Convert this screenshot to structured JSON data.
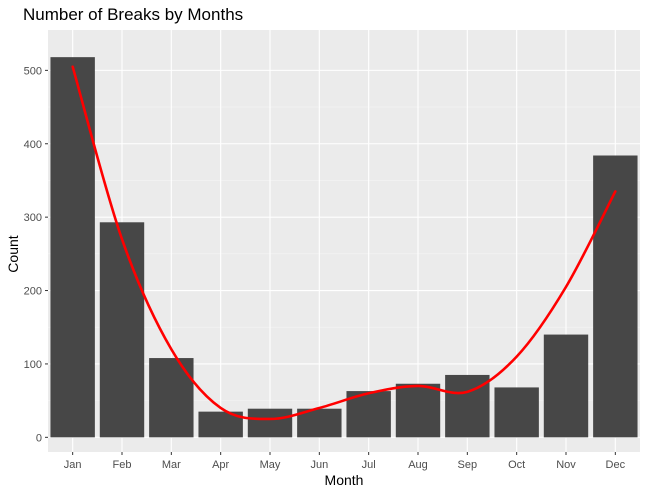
{
  "chart_data": {
    "type": "bar",
    "title": "Number of Breaks by Months",
    "xlabel": "Month",
    "ylabel": "Count",
    "categories": [
      "Jan",
      "Feb",
      "Mar",
      "Apr",
      "May",
      "Jun",
      "Jul",
      "Aug",
      "Sep",
      "Oct",
      "Nov",
      "Dec"
    ],
    "values": [
      518,
      293,
      108,
      35,
      39,
      39,
      63,
      73,
      85,
      68,
      140,
      384
    ],
    "trend_line": {
      "color": "#ff0000",
      "values": [
        505,
        270,
        120,
        40,
        25,
        40,
        60,
        70,
        62,
        110,
        205,
        335
      ]
    },
    "ylim": [
      -20,
      555
    ],
    "yticks": [
      0,
      100,
      200,
      300,
      400,
      500
    ],
    "grid": true,
    "colors": {
      "bar": "#474747",
      "panel": "#ebebeb",
      "grid_major": "#ffffff",
      "grid_minor": "#f5f5f5",
      "trend": "#ff0000"
    }
  }
}
